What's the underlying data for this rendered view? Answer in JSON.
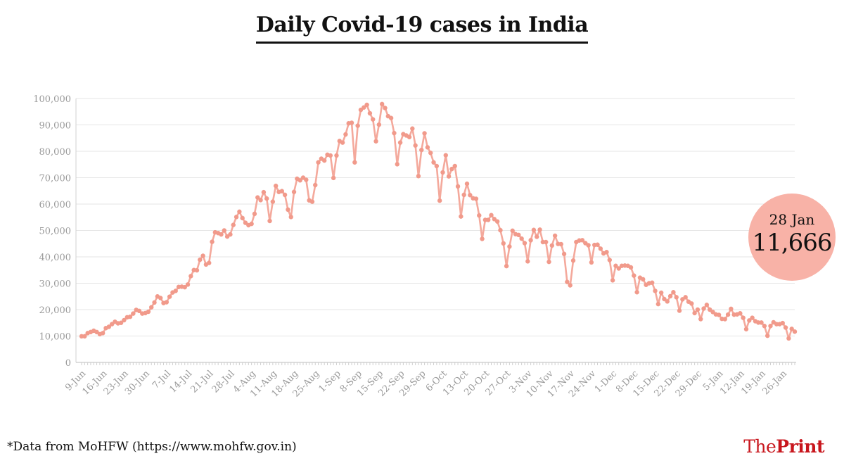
{
  "title": "Daily Covid-19 cases in India",
  "footnote": "*Data from MoHFW (https://www.mohfw.gov.in)",
  "brand": {
    "the": "The",
    "print": "Print"
  },
  "callout": {
    "date": "28 Jan",
    "value": "11,666"
  },
  "colors": {
    "line": "#f4a99c",
    "marker": "#f19a8b",
    "bubble": "#f8b2a7",
    "grid": "#e6e6e6",
    "brand": "#c8161d"
  },
  "chart_data": {
    "type": "line",
    "title": "Daily Covid-19 cases in India",
    "xlabel": "",
    "ylabel": "",
    "ylim": [
      0,
      100000
    ],
    "yticks": [
      0,
      10000,
      20000,
      30000,
      40000,
      50000,
      60000,
      70000,
      80000,
      90000,
      100000
    ],
    "ytick_labels": [
      "0",
      "10,000",
      "20,000",
      "30,000",
      "40,000",
      "50,000",
      "60,000",
      "70,000",
      "80,000",
      "90,000",
      "100,000"
    ],
    "x_start": "9-Jun",
    "x_end": "28-Jan",
    "xtick_labels": [
      "9-Jun",
      "16-Jun",
      "23-Jun",
      "30-Jun",
      "7-Jul",
      "14-Jul",
      "21-Jul",
      "28-Jul",
      "4-Aug",
      "11-Aug",
      "18-Aug",
      "25-Aug",
      "1-Sep",
      "8-Sep",
      "15-Sep",
      "22-Sep",
      "29-Sep",
      "6-Oct",
      "13-Oct",
      "20-Oct",
      "27-Oct",
      "3-Nov",
      "10-Nov",
      "17-Nov",
      "24-Nov",
      "1-Dec",
      "8-Dec",
      "15-Dec",
      "22-Dec",
      "29-Dec",
      "5-Jan",
      "12-Jan",
      "19-Jan",
      "26-Jan"
    ],
    "grid": true,
    "series": [
      {
        "values": [
          9900,
          9900,
          11100,
          11500,
          12000,
          11500,
          10700,
          11100,
          13000,
          13500,
          14500,
          15400,
          14800,
          15000,
          16000,
          17100,
          17300,
          18500,
          19900,
          19500,
          18500,
          18700,
          19200,
          20900,
          22700,
          25000,
          24400,
          22500,
          22800,
          24900,
          26500,
          27100,
          28600,
          28700,
          28500,
          29500,
          32700,
          35000,
          34900,
          38900,
          40400,
          37100,
          37700,
          45700,
          49300,
          49000,
          48500,
          50000,
          47700,
          48500,
          52100,
          55100,
          57100,
          54700,
          52900,
          52000,
          52500,
          56300,
          62500,
          61500,
          64500,
          62100,
          53600,
          60900,
          66900,
          64600,
          64900,
          63500,
          57900,
          55100,
          64600,
          69600,
          69000,
          70000,
          69200,
          61400,
          60900,
          67200,
          75800,
          77200,
          76500,
          78700,
          78400,
          69900,
          78400,
          83900,
          83300,
          86400,
          90600,
          90800,
          75800,
          89700,
          95700,
          96600,
          97600,
          94400,
          92100,
          83800,
          90100,
          97900,
          96400,
          93300,
          92600,
          86900,
          75100,
          83300,
          86500,
          86000,
          85400,
          88600,
          82200,
          70600,
          80500,
          86800,
          81500,
          79400,
          75800,
          74400,
          61300,
          72000,
          78500,
          70500,
          73300,
          74400,
          66700,
          55300,
          63500,
          67700,
          63400,
          62200,
          62000,
          55700,
          46800,
          54000,
          54000,
          55800,
          54300,
          53400,
          50100,
          45100,
          36500,
          43900,
          49900,
          48600,
          48300,
          46900,
          45200,
          38300,
          46300,
          50200,
          47600,
          50300,
          45600,
          45600,
          38100,
          44300,
          48000,
          44900,
          44800,
          41100,
          30500,
          29200,
          38600,
          45600,
          46200,
          46300,
          45200,
          44400,
          37900,
          44500,
          44600,
          43100,
          41300,
          41800,
          38800,
          31100,
          36600,
          35600,
          36600,
          36700,
          36600,
          36000,
          32900,
          26600,
          32100,
          31500,
          29400,
          30000,
          30200,
          27100,
          22100,
          26400,
          24000,
          23100,
          25100,
          26600,
          24700,
          19600,
          23900,
          24700,
          23000,
          22300,
          18700,
          20000,
          16400,
          20400,
          21800,
          20000,
          19100,
          18200,
          18000,
          16500,
          16400,
          18100,
          20300,
          18100,
          18200,
          18600,
          16900,
          12600,
          15900,
          16900,
          15600,
          15100,
          15100,
          13800,
          10100,
          13800,
          15200,
          14500,
          14500,
          14900,
          13200,
          9100,
          12700,
          11666
        ]
      }
    ]
  }
}
